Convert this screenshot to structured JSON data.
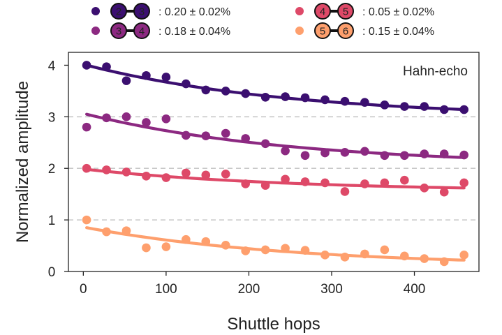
{
  "chart_data": {
    "type": "scatter",
    "xlabel": "Shuttle hops",
    "ylabel": "Normalized amplitude",
    "xlim": [
      -18,
      478
    ],
    "ylim": [
      0,
      4.25
    ],
    "xticks": [
      0,
      100,
      200,
      300,
      400
    ],
    "yticks": [
      0,
      1,
      2,
      3,
      4
    ],
    "gridlines_y": [
      1,
      2,
      3
    ],
    "grid": "dashed horizontal at offsets",
    "annotation": "Hahn-echo",
    "legend_position": "top, two columns",
    "x": [
      4,
      28,
      52,
      76,
      100,
      124,
      148,
      172,
      196,
      220,
      244,
      268,
      292,
      316,
      340,
      364,
      388,
      412,
      436,
      460
    ],
    "series": [
      {
        "name": "2-3",
        "dots": [
          "2",
          "3"
        ],
        "legend_value": ": 0.20 ± 0.02%",
        "color": "#3b0f70",
        "offset": 3,
        "values": [
          4.0,
          3.97,
          3.7,
          3.8,
          3.77,
          3.64,
          3.52,
          3.5,
          3.45,
          3.38,
          3.39,
          3.37,
          3.33,
          3.3,
          3.28,
          3.23,
          3.2,
          3.2,
          3.14,
          3.14
        ],
        "fit": [
          4.0,
          3.14
        ]
      },
      {
        "name": "3-4",
        "dots": [
          "3",
          "4"
        ],
        "legend_value": ": 0.18 ± 0.04%",
        "color": "#8c2981",
        "offset": 2,
        "values": [
          2.8,
          2.98,
          3.0,
          2.89,
          2.96,
          2.64,
          2.63,
          2.68,
          2.58,
          2.48,
          2.34,
          2.25,
          2.3,
          2.31,
          2.33,
          2.25,
          2.25,
          2.28,
          2.28,
          2.26
        ],
        "fit": [
          3.05,
          2.21
        ]
      },
      {
        "name": "4-5",
        "dots": [
          "4",
          "5"
        ],
        "legend_value": ": 0.05 ± 0.02%",
        "color": "#de4968",
        "offset": 1,
        "values": [
          2.0,
          1.97,
          1.93,
          1.85,
          1.82,
          1.91,
          1.87,
          1.89,
          1.7,
          1.67,
          1.79,
          1.74,
          1.72,
          1.55,
          1.7,
          1.72,
          1.77,
          1.62,
          1.54,
          1.72
        ],
        "fit": [
          1.98,
          1.62
        ]
      },
      {
        "name": "5-6",
        "dots": [
          "5",
          "6"
        ],
        "legend_value": ": 0.15 ± 0.04%",
        "color": "#fe9f6d",
        "offset": 0,
        "values": [
          1.0,
          0.77,
          0.79,
          0.46,
          0.48,
          0.62,
          0.58,
          0.51,
          0.4,
          0.42,
          0.45,
          0.41,
          0.32,
          0.28,
          0.34,
          0.42,
          0.3,
          0.25,
          0.19,
          0.32
        ],
        "fit": [
          0.85,
          0.22
        ]
      }
    ]
  }
}
